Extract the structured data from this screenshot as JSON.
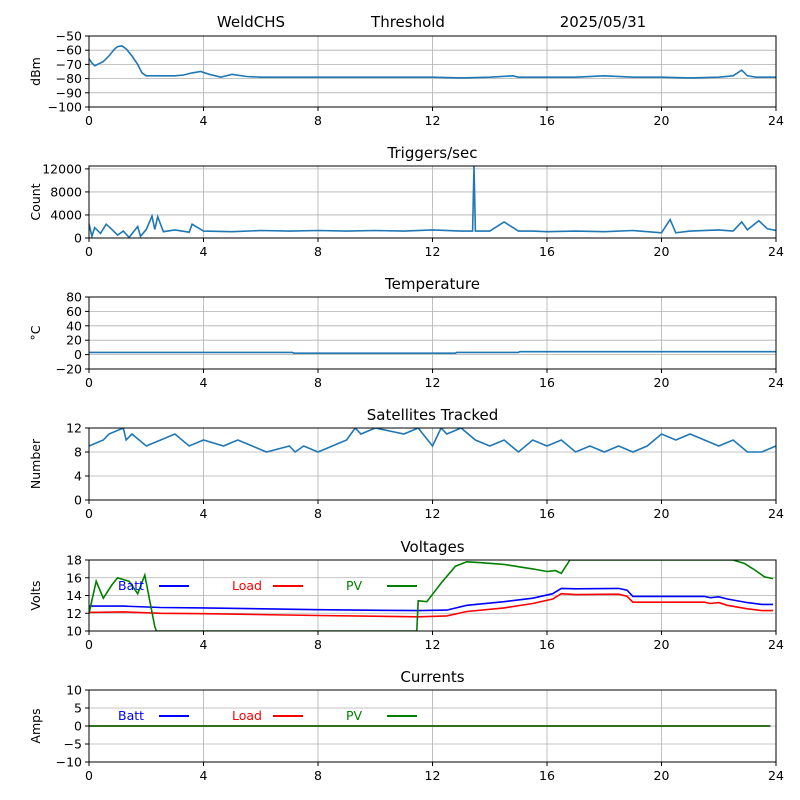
{
  "header": {
    "station": "WeldCHS",
    "mode": "Threshold",
    "date": "2025/05/31"
  },
  "chart_data": [
    {
      "type": "line",
      "title": "",
      "xlabel": "",
      "ylabel": "dBm",
      "xlim": [
        0,
        24
      ],
      "ylim": [
        -100,
        -50
      ],
      "xticks": [
        0,
        4,
        8,
        12,
        16,
        20,
        24
      ],
      "yticks": [
        -100,
        -90,
        -80,
        -70,
        -60,
        -50
      ],
      "grid": true,
      "series": [
        {
          "color": "#1f77b4",
          "x": [
            0,
            0.1,
            0.2,
            0.3,
            0.5,
            0.7,
            0.9,
            1.0,
            1.15,
            1.3,
            1.5,
            1.7,
            1.85,
            2.0,
            2.5,
            3.0,
            3.3,
            3.6,
            3.9,
            4.2,
            4.6,
            5.0,
            5.5,
            6.0,
            7.0,
            8.0,
            9.0,
            10.0,
            11.0,
            12.0,
            13.0,
            14.0,
            14.8,
            15.0,
            16.0,
            17.0,
            18.0,
            19.0,
            20.0,
            21.0,
            22.0,
            22.5,
            22.8,
            23.0,
            23.3,
            24.0
          ],
          "y": [
            -66,
            -69,
            -71,
            -70,
            -68,
            -64,
            -59,
            -57.5,
            -57,
            -59,
            -64,
            -70,
            -76,
            -78,
            -78,
            -78,
            -77.5,
            -76,
            -75,
            -77,
            -79,
            -77,
            -78.5,
            -79,
            -79,
            -79,
            -79,
            -79,
            -79,
            -79,
            -79.5,
            -79,
            -78,
            -79,
            -79,
            -79,
            -78,
            -79,
            -79,
            -79.5,
            -79,
            -78,
            -74,
            -78,
            -79,
            -79
          ]
        }
      ]
    },
    {
      "type": "line",
      "title": "Triggers/sec",
      "xlabel": "",
      "ylabel": "Count",
      "xlim": [
        0,
        24
      ],
      "ylim": [
        0,
        12500
      ],
      "xticks": [
        0,
        4,
        8,
        12,
        16,
        20,
        24
      ],
      "yticks": [
        0,
        4000,
        8000,
        12000
      ],
      "grid": true,
      "series": [
        {
          "color": "#1f77b4",
          "x": [
            0,
            0.1,
            0.2,
            0.4,
            0.6,
            0.8,
            1.0,
            1.2,
            1.4,
            1.7,
            1.8,
            2.0,
            2.2,
            2.3,
            2.4,
            2.6,
            3.0,
            3.5,
            3.6,
            4.0,
            5.0,
            6.0,
            7.0,
            8.0,
            9.0,
            10.0,
            11.0,
            12.0,
            13.0,
            13.4,
            13.45,
            13.5,
            14.0,
            14.5,
            15.0,
            15.5,
            16.0,
            17.0,
            18.0,
            19.0,
            20.0,
            20.3,
            20.5,
            21.0,
            22.0,
            22.5,
            22.8,
            23.0,
            23.4,
            23.7,
            24.0
          ],
          "y": [
            2500,
            300,
            1800,
            800,
            2400,
            1500,
            500,
            1200,
            100,
            2000,
            300,
            1500,
            3800,
            1500,
            3700,
            1100,
            1400,
            1000,
            2400,
            1200,
            1100,
            1300,
            1200,
            1300,
            1200,
            1300,
            1200,
            1400,
            1200,
            1200,
            12500,
            1200,
            1200,
            2800,
            1200,
            1200,
            1100,
            1200,
            1100,
            1300,
            900,
            3200,
            900,
            1200,
            1400,
            1200,
            2800,
            1400,
            3000,
            1600,
            1300
          ]
        }
      ]
    },
    {
      "type": "line",
      "title": "Temperature",
      "xlabel": "",
      "ylabel": "°C",
      "xlim": [
        0,
        24
      ],
      "ylim": [
        -20,
        80
      ],
      "xticks": [
        0,
        4,
        8,
        12,
        16,
        20,
        24
      ],
      "yticks": [
        -20,
        0,
        20,
        40,
        60,
        80
      ],
      "grid": true,
      "series": [
        {
          "color": "#1f77b4",
          "x": [
            0,
            7.1,
            7.15,
            12.8,
            12.85,
            15.0,
            15.05,
            24.0
          ],
          "y": [
            3,
            3,
            2,
            2,
            3,
            3,
            4,
            4
          ]
        }
      ]
    },
    {
      "type": "line",
      "title": "Satellites Tracked",
      "xlabel": "",
      "ylabel": "Number",
      "xlim": [
        0,
        24
      ],
      "ylim": [
        0,
        12
      ],
      "xticks": [
        0,
        4,
        8,
        12,
        16,
        20,
        24
      ],
      "yticks": [
        0,
        4,
        8,
        12
      ],
      "grid": true,
      "series": [
        {
          "color": "#1f77b4",
          "x": [
            0,
            0.5,
            0.7,
            1.2,
            1.3,
            1.5,
            2.0,
            2.5,
            3.0,
            3.5,
            4.0,
            4.7,
            5.2,
            5.7,
            6.2,
            7.0,
            7.2,
            7.5,
            8.0,
            8.5,
            9.0,
            9.3,
            9.5,
            10.0,
            11.0,
            11.5,
            12.0,
            12.3,
            12.5,
            13.0,
            13.5,
            14.0,
            14.5,
            15.0,
            15.5,
            16.0,
            16.5,
            17.0,
            17.5,
            18.0,
            18.5,
            19.0,
            19.5,
            20.0,
            20.5,
            21.0,
            21.5,
            22.0,
            22.5,
            23.0,
            23.5,
            24.0
          ],
          "y": [
            9,
            10,
            11,
            12,
            10,
            11,
            9,
            10,
            11,
            9,
            10,
            9,
            10,
            9,
            8,
            9,
            8,
            9,
            8,
            9,
            10,
            12,
            11,
            12,
            11,
            12,
            9,
            12,
            11,
            12,
            10,
            9,
            10,
            8,
            10,
            9,
            10,
            8,
            9,
            8,
            9,
            8,
            9,
            11,
            10,
            11,
            10,
            9,
            10,
            8,
            8,
            9
          ]
        }
      ]
    },
    {
      "type": "line",
      "title": "Voltages",
      "xlabel": "",
      "ylabel": "Volts",
      "xlim": [
        0,
        24
      ],
      "ylim": [
        10,
        18
      ],
      "xticks": [
        0,
        4,
        8,
        12,
        16,
        20,
        24
      ],
      "yticks": [
        10,
        12,
        14,
        16,
        18
      ],
      "grid": true,
      "legend": "top-left, inline",
      "series": [
        {
          "name": "Batt",
          "color": "#0000ff",
          "x": [
            0,
            1.2,
            2.5,
            4,
            8,
            11.5,
            12.5,
            13.2,
            14.5,
            15.5,
            16.2,
            16.5,
            17,
            18.5,
            18.8,
            19,
            21.5,
            21.7,
            22,
            22.3,
            23,
            23.5,
            23.9
          ],
          "y": [
            12.8,
            12.8,
            12.65,
            12.6,
            12.4,
            12.3,
            12.35,
            12.9,
            13.3,
            13.7,
            14.2,
            14.8,
            14.75,
            14.8,
            14.6,
            13.9,
            13.9,
            13.75,
            13.85,
            13.6,
            13.2,
            13.0,
            13.0
          ]
        },
        {
          "name": "Load",
          "color": "#ff0000",
          "x": [
            0,
            1.2,
            2.5,
            4,
            8,
            11.5,
            12.5,
            13.2,
            14.5,
            15.5,
            16.2,
            16.5,
            17,
            18.5,
            18.8,
            19,
            21.5,
            21.7,
            22,
            22.3,
            23,
            23.5,
            23.9
          ],
          "y": [
            12.1,
            12.15,
            12.0,
            11.95,
            11.75,
            11.6,
            11.7,
            12.2,
            12.6,
            13.1,
            13.6,
            14.2,
            14.1,
            14.15,
            13.9,
            13.25,
            13.25,
            13.1,
            13.2,
            12.9,
            12.5,
            12.3,
            12.3
          ]
        },
        {
          "name": "PV",
          "color": "#008000",
          "x": [
            0,
            0.25,
            0.5,
            0.8,
            1.0,
            1.4,
            1.7,
            1.95,
            2.3,
            2.35,
            11.45,
            11.5,
            11.8,
            12.3,
            12.8,
            13.2,
            13.7,
            14.5,
            15.5,
            16.0,
            16.3,
            16.5,
            16.8,
            22.5,
            22.9,
            23.2,
            23.6,
            23.9
          ],
          "y": [
            12.0,
            15.6,
            13.7,
            15.2,
            16.0,
            15.6,
            14.2,
            16.3,
            10.5,
            10.0,
            10.0,
            13.4,
            13.3,
            15.4,
            17.3,
            17.8,
            17.7,
            17.5,
            17.0,
            16.7,
            16.8,
            16.5,
            18.0,
            18.0,
            17.6,
            17.0,
            16.1,
            15.9
          ]
        }
      ]
    },
    {
      "type": "line",
      "title": "Currents",
      "xlabel": "",
      "ylabel": "Amps",
      "xlim": [
        0,
        24
      ],
      "ylim": [
        -10,
        10
      ],
      "xticks": [
        0,
        4,
        8,
        12,
        16,
        20,
        24
      ],
      "yticks": [
        -10,
        -5,
        0,
        5,
        10
      ],
      "grid": true,
      "legend": "top-left, inline",
      "series": [
        {
          "name": "Batt",
          "color": "#0000ff",
          "x": [
            0,
            23.8
          ],
          "y": [
            0,
            0
          ]
        },
        {
          "name": "Load",
          "color": "#ff0000",
          "x": [
            0,
            23.8
          ],
          "y": [
            0,
            0
          ]
        },
        {
          "name": "PV",
          "color": "#008000",
          "x": [
            0,
            23.8
          ],
          "y": [
            0,
            0
          ]
        }
      ]
    }
  ]
}
